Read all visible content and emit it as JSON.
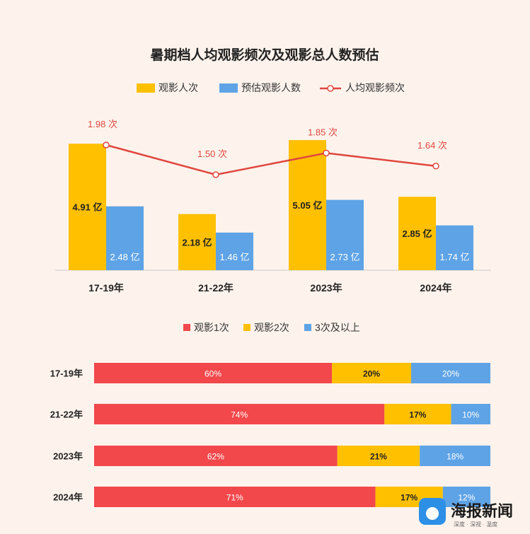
{
  "colors": {
    "yellow": "#ffc000",
    "blue": "#5ea3e6",
    "red": "#f2484b",
    "line": "#e0473f",
    "background": "#fdf3ec"
  },
  "chart_data": [
    {
      "type": "bar",
      "title": "暑期档人均观影频次及观影总人数预估",
      "categories": [
        "17-19年",
        "21-22年",
        "2023年",
        "2024年"
      ],
      "series": [
        {
          "name": "观影人次",
          "values": [
            4.91,
            2.18,
            5.05,
            2.85
          ],
          "labels": [
            "4.91 亿",
            "2.18 亿",
            "5.05 亿",
            "2.85 亿"
          ]
        },
        {
          "name": "预估观影人数",
          "values": [
            2.48,
            1.46,
            2.73,
            1.74
          ],
          "labels": [
            "2.48 亿",
            "1.46 亿",
            "2.73 亿",
            "1.74 亿"
          ]
        }
      ],
      "line_series": {
        "name": "人均观影频次",
        "values": [
          1.98,
          1.5,
          1.85,
          1.64
        ],
        "labels": [
          "1.98 次",
          "1.50 次",
          "1.85 次",
          "1.64 次"
        ]
      },
      "xlabel": "",
      "ylabel": "",
      "ylim": [
        0,
        5.3
      ],
      "legend_position": "top-center",
      "grid": false
    },
    {
      "type": "bar",
      "stacked": true,
      "orientation": "horizontal",
      "categories": [
        "17-19年",
        "21-22年",
        "2023年",
        "2024年"
      ],
      "series": [
        {
          "name": "观影1次",
          "values": [
            60,
            74,
            62,
            71
          ],
          "labels": [
            "60%",
            "74%",
            "62%",
            "71%"
          ]
        },
        {
          "name": "观影2次",
          "values": [
            20,
            17,
            21,
            17
          ],
          "labels": [
            "20%",
            "17%",
            "21%",
            "17%"
          ]
        },
        {
          "name": "3次及以上",
          "values": [
            20,
            10,
            18,
            12
          ],
          "labels": [
            "20%",
            "10%",
            "18%",
            "12%"
          ]
        }
      ],
      "legend_position": "top-center",
      "grid": false
    }
  ],
  "watermark": {
    "name": "海报新闻",
    "tagline": "深度 · 深视 · 温度"
  }
}
